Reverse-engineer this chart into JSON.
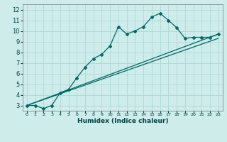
{
  "xlabel": "Humidex (Indice chaleur)",
  "bg_color": "#cdecea",
  "grid_color": "#aed8d5",
  "line_color": "#006868",
  "xlim": [
    -0.5,
    23.5
  ],
  "ylim": [
    2.5,
    12.5
  ],
  "xticks": [
    0,
    1,
    2,
    3,
    4,
    5,
    6,
    7,
    8,
    9,
    10,
    11,
    12,
    13,
    14,
    15,
    16,
    17,
    18,
    19,
    20,
    21,
    22,
    23
  ],
  "yticks": [
    3,
    4,
    5,
    6,
    7,
    8,
    9,
    10,
    11,
    12
  ],
  "series1_x": [
    0,
    1,
    2,
    3,
    4,
    5,
    6,
    7,
    8,
    9,
    10,
    11,
    12,
    13,
    14,
    15,
    16,
    17,
    18,
    19,
    20,
    21,
    22,
    23
  ],
  "series1_y": [
    3.0,
    3.0,
    2.7,
    3.0,
    4.2,
    4.5,
    5.6,
    6.6,
    7.4,
    7.8,
    8.6,
    10.4,
    9.7,
    10.0,
    10.4,
    11.3,
    11.65,
    11.0,
    10.3,
    9.3,
    9.4,
    9.4,
    9.4,
    9.7
  ],
  "series2_x": [
    0,
    23
  ],
  "series2_y": [
    3.0,
    9.7
  ],
  "series3_x": [
    0,
    23
  ],
  "series3_y": [
    3.0,
    9.3
  ]
}
